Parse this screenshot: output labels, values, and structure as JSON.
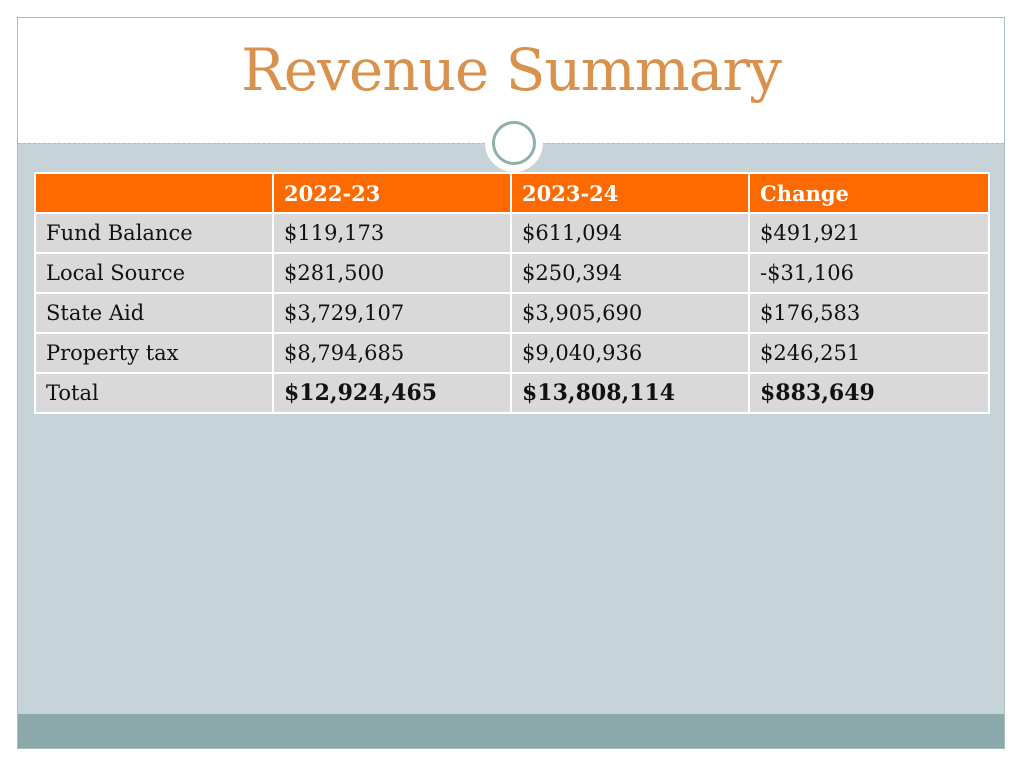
{
  "slide": {
    "title": "Revenue Summary"
  },
  "table": {
    "headers": [
      "",
      "2022-23",
      "2023-24",
      "Change"
    ],
    "rows": [
      {
        "label": "Fund Balance",
        "y2022": "$119,173",
        "y2023": "$611,094",
        "change": "$491,921",
        "change_negative": false
      },
      {
        "label": "Local Source",
        "y2022": "$281,500",
        "y2023": "$250,394",
        "change": "-$31,106",
        "change_negative": true
      },
      {
        "label": "State Aid",
        "y2022": "$3,729,107",
        "y2023": "$3,905,690",
        "change": "$176,583",
        "change_negative": false
      },
      {
        "label": "Property tax",
        "y2022": "$8,794,685",
        "y2023": "$9,040,936",
        "change": "$246,251",
        "change_negative": false
      }
    ],
    "total": {
      "label": "Total",
      "y2022": "$12,924,465",
      "y2023": "$13,808,114",
      "change": "$883,649"
    }
  },
  "colors": {
    "title": "#d9914e",
    "header_bg": "#ff6a00",
    "cell_bg": "#d9d9d9",
    "slide_bg": "#c6d4d9",
    "negative": "#e60000",
    "footer": "#8ba9aa"
  }
}
